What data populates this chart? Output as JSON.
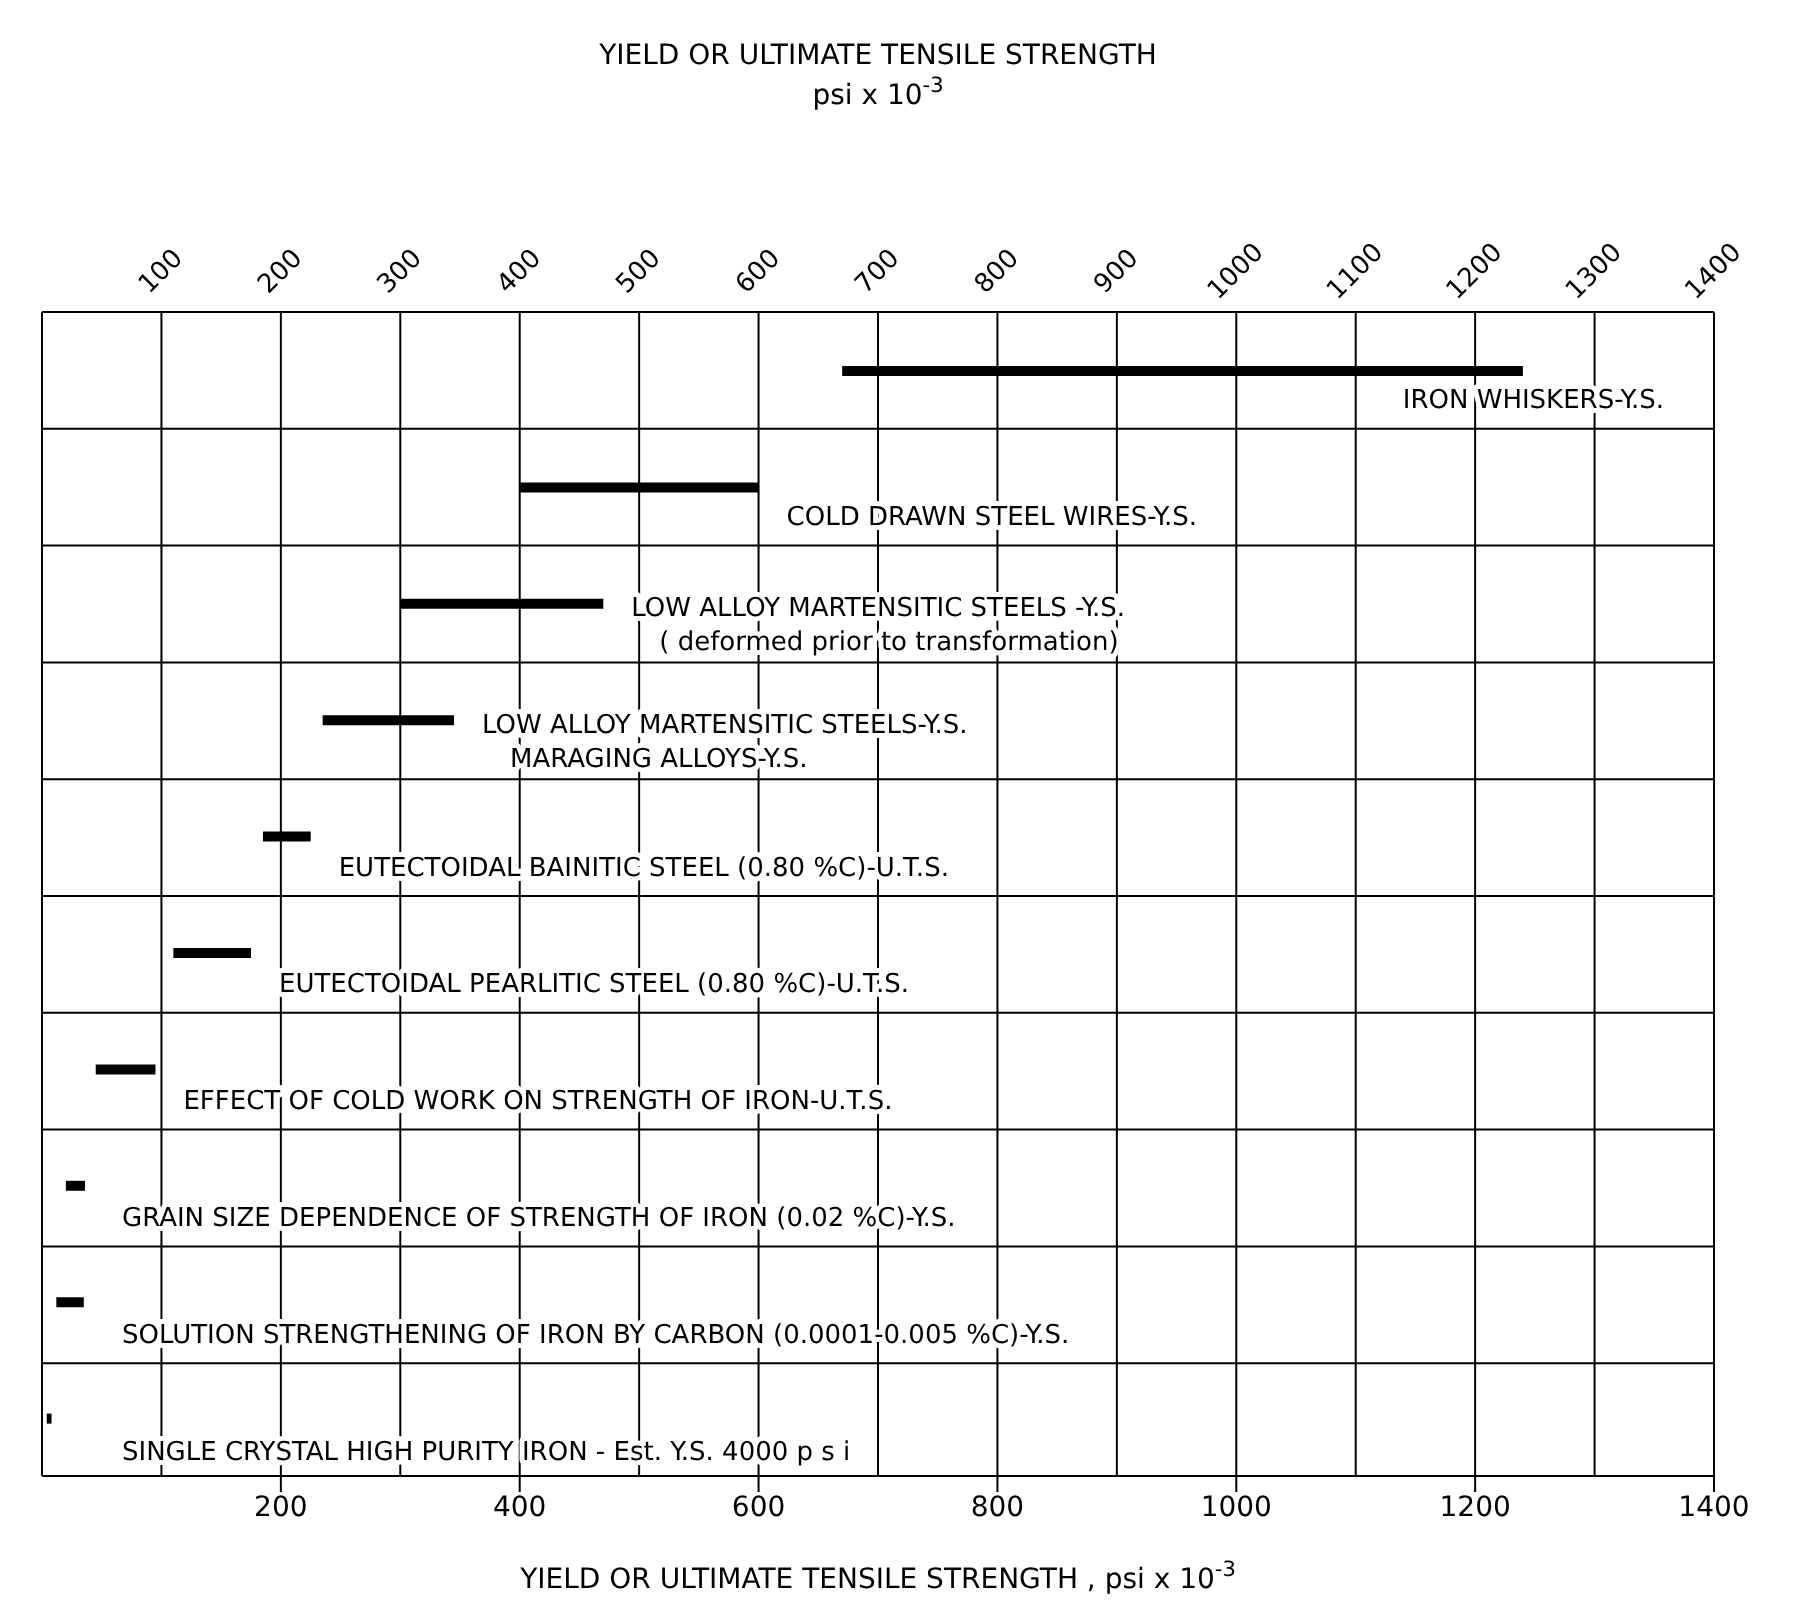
{
  "chart_data": {
    "type": "bar",
    "orientation": "horizontal",
    "color": "#000000",
    "grid": true,
    "x2label": "YIELD OR ULTIMATE TENSILE STRENGTH\npsi x 10$^{-3}$",
    "xlabel": "YIELD OR ULTIMATE TENSILE STRENGTH , psi x 10$^{-3}$",
    "categories": [
      "IRON WHISKERS-Y.S.",
      "COLD DRAWN STEEL WIRES-Y.S.",
      "LOW ALLOY MARTENSITIC STEELS -Y.S.\n( deformed prior to transformation)",
      "LOW ALLOY MARTENSITIC STEELS-Y.S.\nMARAGING ALLOYS-Y.S.",
      "EUTECTOIDAL BAINITIC STEEL (0.80 %C)-U.T.S.",
      "EUTECTOIDAL PEARLITIC STEEL (0.80 %C)-U.T.S.",
      "EFFECT OF COLD WORK ON STRENGTH OF IRON-U.T.S.",
      "GRAIN SIZE DEPENDENCE OF STRENGTH OF IRON (0.02 %C)-Y.S.",
      "SOLUTION STRENGTHENING OF IRON BY CARBON (0.0001-0.005 %C)-Y.S.",
      "SINGLE CRYSTAL HIGH PURITY IRON - Est. Y.S. 4000 p s i"
    ],
    "base": [
      670,
      400,
      300,
      235,
      185,
      110,
      45,
      20,
      12,
      4
    ],
    "values": [
      570,
      200,
      170,
      110,
      40,
      65,
      50,
      16,
      23,
      4
    ],
    "xlim": [
      0,
      1400
    ],
    "xticks": [
      200,
      400,
      600,
      800,
      1000,
      1200,
      1400
    ],
    "x2lim": [
      0,
      1400
    ],
    "x2ticks": [
      100,
      200,
      300,
      400,
      500,
      600,
      700,
      800,
      900,
      1000,
      1100,
      1200,
      1300,
      1400
    ]
  }
}
